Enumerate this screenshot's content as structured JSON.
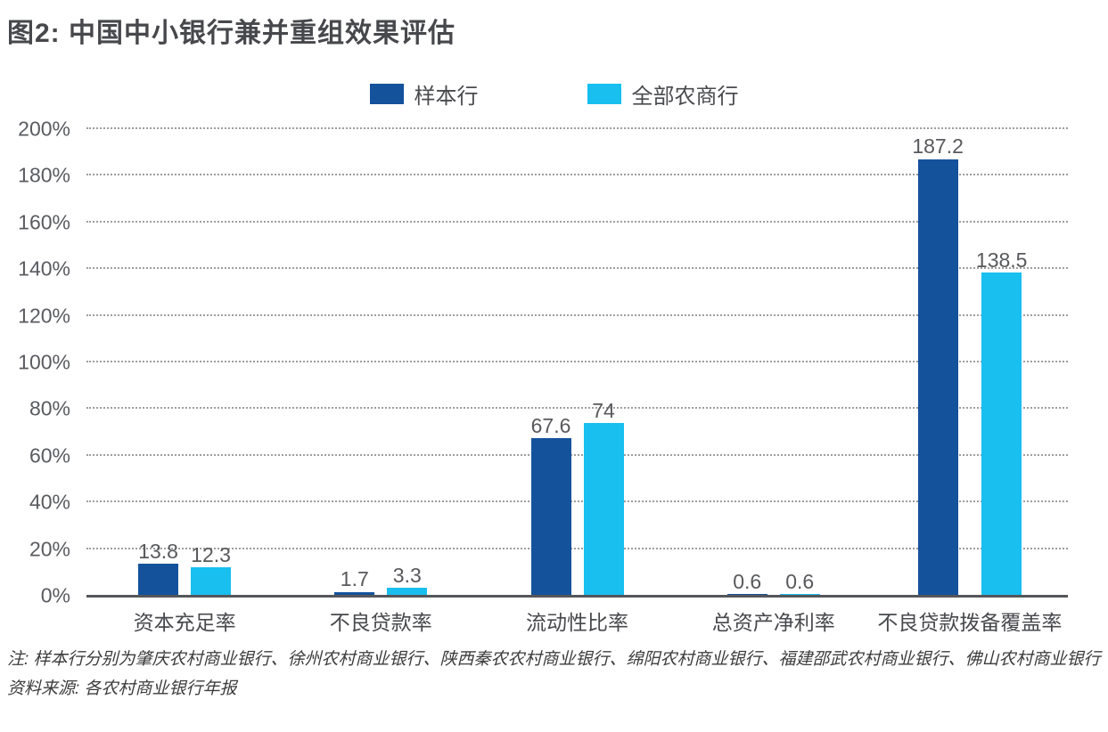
{
  "title": "图2: 中国中小银行兼并重组效果评估",
  "colors": {
    "series_sample": "#14529c",
    "series_all_rural": "#18bfef",
    "title_text": "#47484c",
    "axis_text": "#595b60",
    "gridline": "#9e9e9e",
    "baseline": "#55565a"
  },
  "legend": [
    {
      "label": "样本行",
      "color": "#14529c"
    },
    {
      "label": "全部农商行",
      "color": "#18bfef"
    }
  ],
  "chart_data": {
    "type": "bar",
    "title": "图2: 中国中小银行兼并重组效果评估",
    "categories": [
      "资本充足率",
      "不良贷款率",
      "流动性比率",
      "总资产净利率",
      "不良贷款拨备覆盖率"
    ],
    "series": [
      {
        "name": "样本行",
        "color": "#14529c",
        "values": [
          13.8,
          1.7,
          67.6,
          0.6,
          187.2
        ],
        "labels": [
          "13.8",
          "1.7",
          "67.6",
          "0.6",
          "187.2"
        ]
      },
      {
        "name": "全部农商行",
        "color": "#18bfef",
        "values": [
          12.3,
          3.3,
          74,
          0.6,
          138.5
        ],
        "labels": [
          "12.3",
          "3.3",
          "74",
          "0.6",
          "138.5"
        ]
      }
    ],
    "xlabel": "",
    "ylabel": "",
    "ylim": [
      0,
      200
    ],
    "y_tick_step": 20,
    "y_ticks": [
      "0%",
      "20%",
      "40%",
      "60%",
      "80%",
      "100%",
      "120%",
      "140%",
      "160%",
      "180%",
      "200%"
    ],
    "grid": "horizontal-dotted",
    "legend_position": "top-center",
    "value_labels": true
  },
  "notes": {
    "note1": "注: 样本行分别为肇庆农村商业银行、徐州农村商业银行、陕西秦农农村商业银行、绵阳农村商业银行、福建邵武农村商业银行、佛山农村商业银行",
    "source": "资料来源: 各农村商业银行年报"
  }
}
